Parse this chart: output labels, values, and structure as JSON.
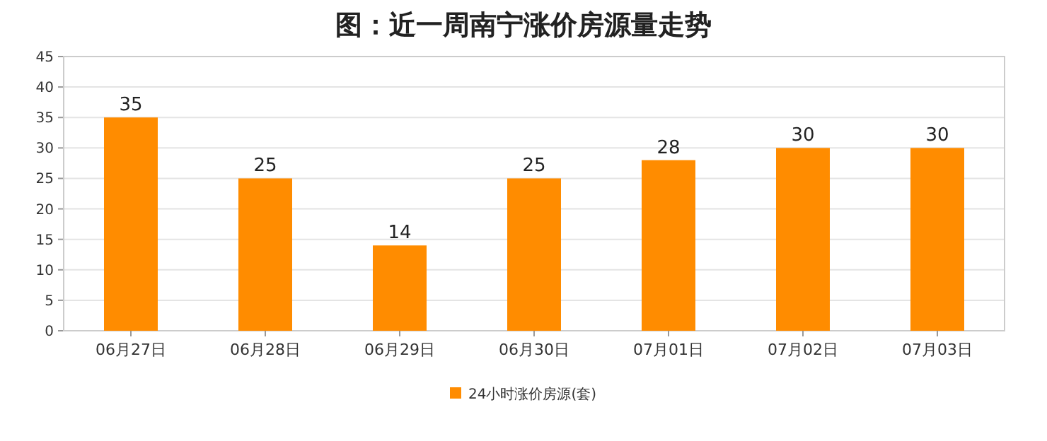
{
  "chart_data": {
    "type": "bar",
    "title": "图：近一周南宁涨价房源量走势",
    "categories": [
      "06月27日",
      "06月28日",
      "06月29日",
      "06月30日",
      "07月01日",
      "07月02日",
      "07月03日"
    ],
    "series": [
      {
        "name": "24小时涨价房源(套)",
        "color": "#ff8c00",
        "values": [
          35,
          25,
          14,
          25,
          28,
          30,
          30
        ]
      }
    ],
    "ylim": [
      0,
      45
    ],
    "yticks": [
      0,
      5,
      10,
      15,
      20,
      25,
      30,
      35,
      40,
      45
    ],
    "grid": "y",
    "legend": "bottom",
    "data_labels": true
  }
}
